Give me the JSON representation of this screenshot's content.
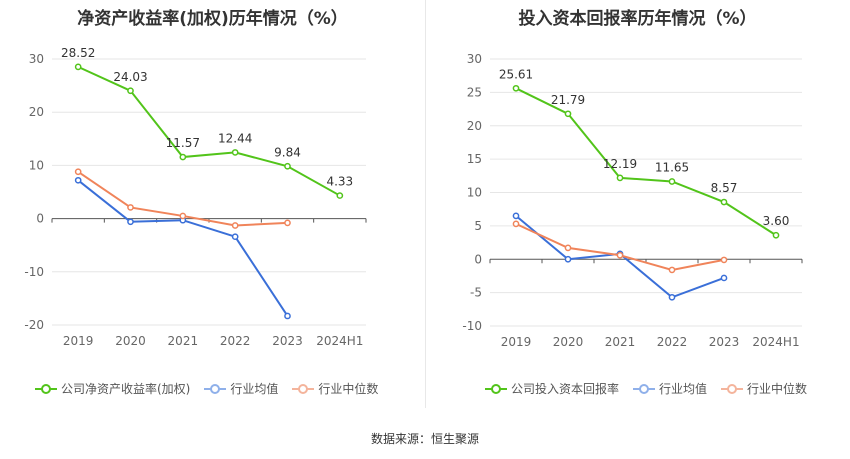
{
  "source": "数据来源：恒生聚源",
  "legend_colors": {
    "company": "#52c41a",
    "avg": "#3a6fd8",
    "median": "#f0845a",
    "avg_legend": "#8fb0ea",
    "median_legend": "#f4b49c"
  },
  "chart_data": [
    {
      "type": "line",
      "title": "净资产收益率(加权)历年情况（%）",
      "categories": [
        "2019",
        "2020",
        "2021",
        "2022",
        "2023",
        "2024H1"
      ],
      "ylim": [
        -20,
        30
      ],
      "yticks": [
        -20,
        -10,
        0,
        10,
        20,
        30
      ],
      "series": [
        {
          "name": "公司净资产收益率(加权)",
          "values": [
            28.52,
            24.03,
            11.57,
            12.44,
            9.84,
            4.33
          ],
          "labels": [
            "28.52",
            "24.03",
            "11.57",
            "12.44",
            "9.84",
            "4.33"
          ]
        },
        {
          "name": "行业均值",
          "values": [
            7.2,
            -0.6,
            -0.3,
            -3.4,
            -18.3,
            null
          ]
        },
        {
          "name": "行业中位数",
          "values": [
            8.8,
            2.1,
            0.5,
            -1.3,
            -0.8,
            null
          ]
        }
      ]
    },
    {
      "type": "line",
      "title": "投入资本回报率历年情况（%）",
      "categories": [
        "2019",
        "2020",
        "2021",
        "2022",
        "2023",
        "2024H1"
      ],
      "ylim": [
        -10,
        30
      ],
      "yticks": [
        -10,
        -5,
        0,
        5,
        10,
        15,
        20,
        25,
        30
      ],
      "series": [
        {
          "name": "公司投入资本回报率",
          "values": [
            25.61,
            21.79,
            12.19,
            11.65,
            8.57,
            3.6
          ],
          "labels": [
            "25.61",
            "21.79",
            "12.19",
            "11.65",
            "8.57",
            "3.60"
          ]
        },
        {
          "name": "行业均值",
          "values": [
            6.5,
            0.0,
            0.8,
            -5.7,
            -2.8,
            null
          ]
        },
        {
          "name": "行业中位数",
          "values": [
            5.3,
            1.7,
            0.6,
            -1.6,
            -0.1,
            null
          ]
        }
      ]
    }
  ]
}
